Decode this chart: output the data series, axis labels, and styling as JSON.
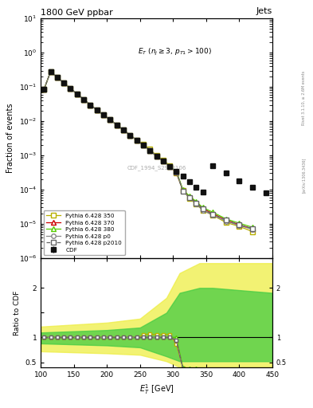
{
  "title": "1800 GeV ppbar",
  "title_right": "Jets",
  "annotation": "$E_T$ ($n_j \\geq 3$, $p_{T1}>100$)",
  "watermark": "CDF_1994_S2952106",
  "xlabel": "$E^1_T$ [GeV]",
  "ylabel_main": "Fraction of events",
  "ylabel_ratio": "Ratio to CDF",
  "xmin": 100,
  "xmax": 450,
  "cdf_x": [
    105,
    115,
    125,
    135,
    145,
    155,
    165,
    175,
    185,
    195,
    205,
    215,
    225,
    235,
    245,
    255,
    265,
    275,
    285,
    295,
    305,
    315,
    325,
    335,
    345,
    360,
    380,
    400,
    420,
    440
  ],
  "cdf_y": [
    0.085,
    0.28,
    0.19,
    0.13,
    0.09,
    0.062,
    0.043,
    0.03,
    0.021,
    0.015,
    0.011,
    0.0078,
    0.0055,
    0.0039,
    0.0028,
    0.002,
    0.0014,
    0.00095,
    0.00068,
    0.00048,
    0.00035,
    0.00025,
    0.00017,
    0.00012,
    8.5e-05,
    0.0005,
    0.0003,
    0.00018,
    0.00012,
    8e-05
  ],
  "cdf_yerr": [
    0.005,
    0.008,
    0.007,
    0.006,
    0.004,
    0.003,
    0.002,
    0.002,
    0.001,
    0.001,
    0.0008,
    0.0006,
    0.0004,
    0.0003,
    0.0002,
    0.00015,
    0.0001,
    8e-05,
    6e-05,
    4e-05,
    3e-05,
    2e-05,
    1.5e-05,
    1e-05,
    8e-06,
    5e-05,
    4e-05,
    3e-05,
    2e-05,
    1e-05
  ],
  "mc_x": [
    105,
    115,
    125,
    135,
    145,
    155,
    165,
    175,
    185,
    195,
    205,
    215,
    225,
    235,
    245,
    255,
    265,
    275,
    285,
    295,
    305,
    315,
    325,
    335,
    345,
    360,
    380,
    400,
    420
  ],
  "py350_y": [
    0.085,
    0.28,
    0.19,
    0.13,
    0.09,
    0.062,
    0.043,
    0.03,
    0.021,
    0.015,
    0.011,
    0.0078,
    0.0055,
    0.0039,
    0.0028,
    0.0021,
    0.0015,
    0.001,
    0.00072,
    0.00051,
    0.0003,
    9.5e-05,
    5.5e-05,
    3.8e-05,
    2.5e-05,
    1.8e-05,
    1.1e-05,
    8.5e-06,
    6e-06
  ],
  "py350_color": "#b8b000",
  "py370_y": [
    0.085,
    0.28,
    0.19,
    0.13,
    0.09,
    0.062,
    0.043,
    0.03,
    0.021,
    0.015,
    0.011,
    0.0078,
    0.0055,
    0.0039,
    0.0028,
    0.002,
    0.0014,
    0.00095,
    0.00068,
    0.00048,
    0.00033,
    9.5e-05,
    6.2e-05,
    4.2e-05,
    2.8e-05,
    2e-05,
    1.3e-05,
    9.5e-06,
    7.2e-06
  ],
  "py370_color": "#cc0000",
  "py380_y": [
    0.085,
    0.28,
    0.19,
    0.13,
    0.09,
    0.062,
    0.043,
    0.03,
    0.021,
    0.015,
    0.011,
    0.0078,
    0.0055,
    0.0039,
    0.0028,
    0.002,
    0.0014,
    0.00095,
    0.00068,
    0.00048,
    0.00035,
    9.8e-05,
    6.5e-05,
    4.5e-05,
    3e-05,
    2.2e-05,
    1.4e-05,
    1.05e-05,
    8e-06
  ],
  "py380_color": "#55cc00",
  "pyp0_y": [
    0.085,
    0.28,
    0.19,
    0.13,
    0.09,
    0.062,
    0.043,
    0.03,
    0.021,
    0.015,
    0.011,
    0.0078,
    0.0055,
    0.0039,
    0.0028,
    0.002,
    0.0014,
    0.00095,
    0.00068,
    0.00048,
    0.00033,
    9e-05,
    5.8e-05,
    3.8e-05,
    2.5e-05,
    1.8e-05,
    1.2e-05,
    9e-06,
    7e-06
  ],
  "pyp0_color": "#888888",
  "pyp2010_y": [
    0.085,
    0.28,
    0.19,
    0.13,
    0.09,
    0.062,
    0.043,
    0.03,
    0.021,
    0.015,
    0.011,
    0.0078,
    0.0055,
    0.0039,
    0.0028,
    0.002,
    0.0014,
    0.00095,
    0.00068,
    0.00048,
    0.00033,
    9e-05,
    6e-05,
    4e-05,
    2.7e-05,
    1.9e-05,
    1.3e-05,
    9.5e-06,
    7.3e-06
  ],
  "pyp2010_color": "#666666",
  "background_color": "#ffffff"
}
